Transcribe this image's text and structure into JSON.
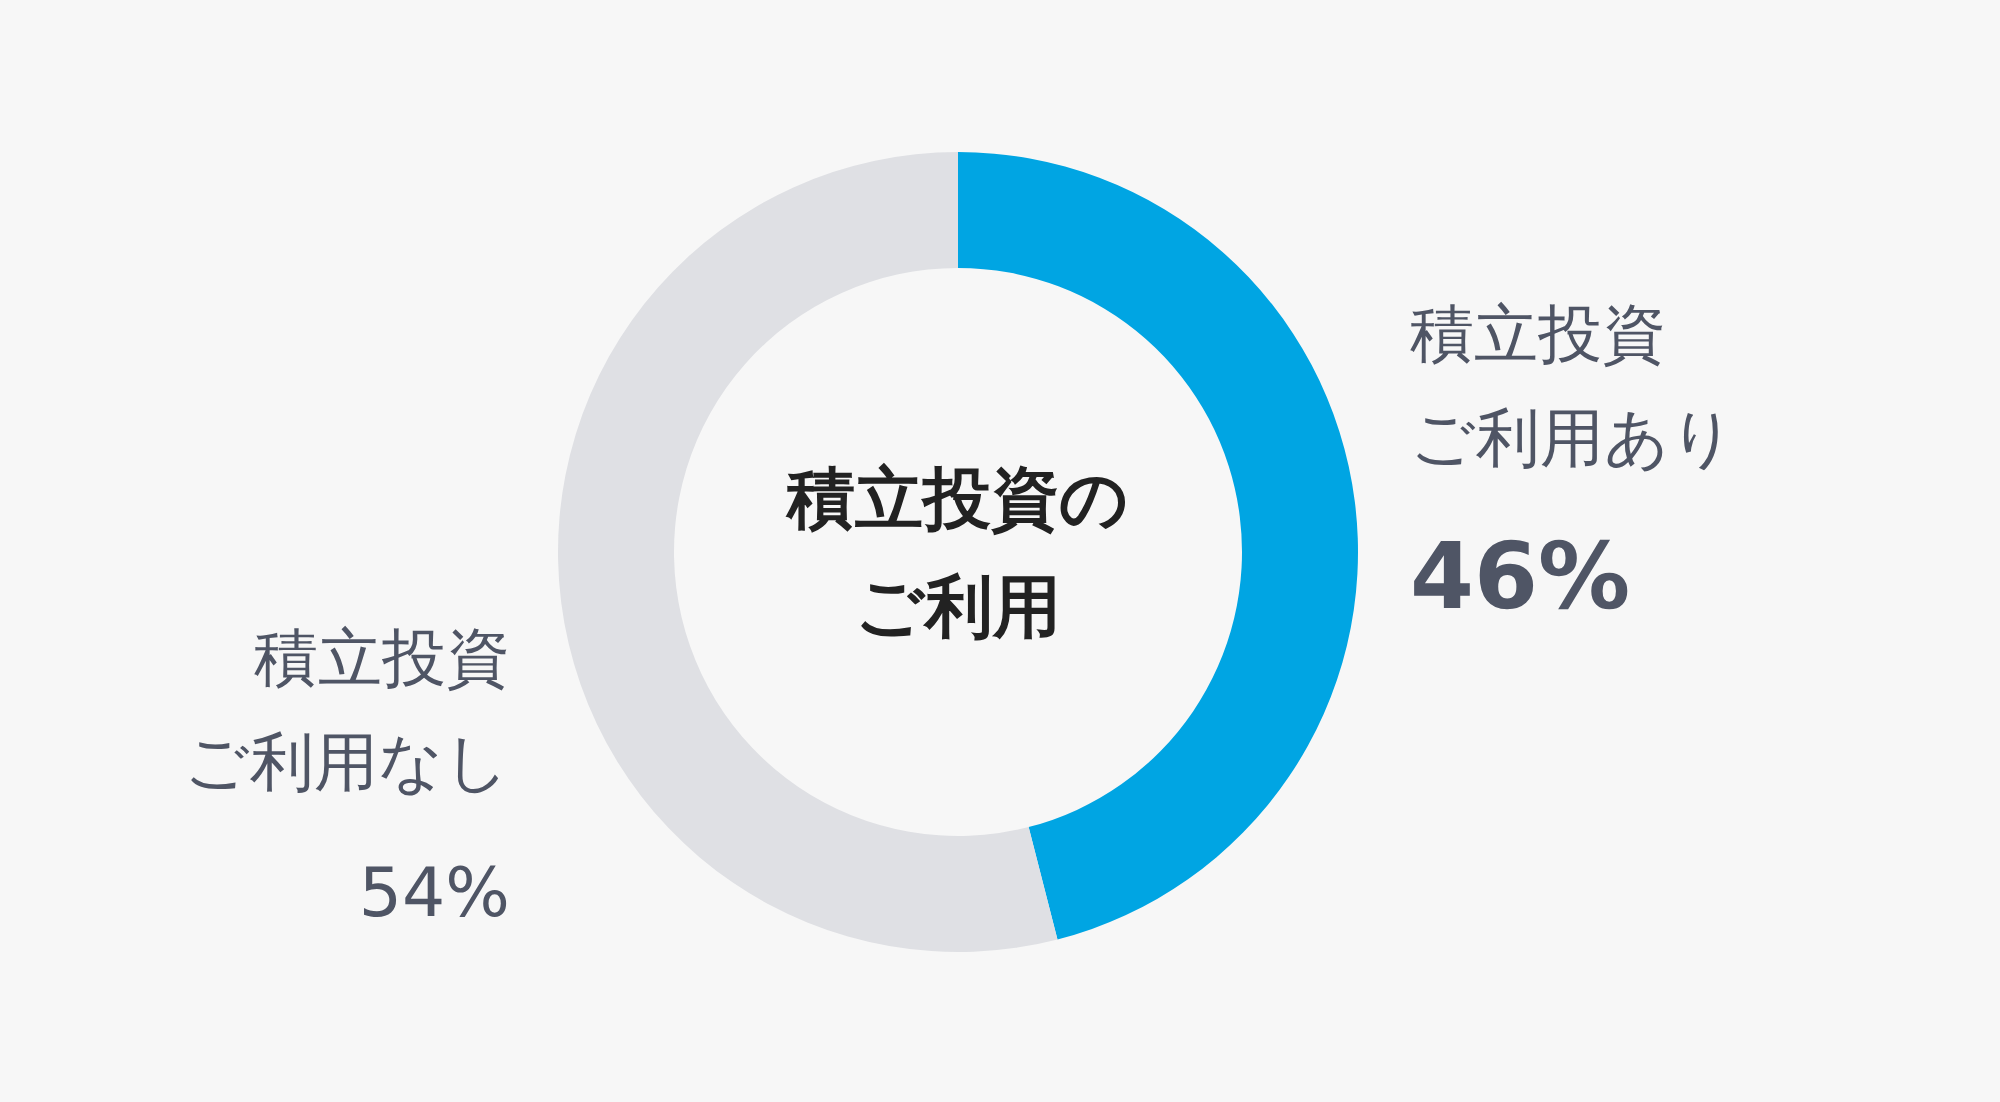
{
  "chart_data": {
    "type": "donut",
    "title": "積立投資のご利用",
    "categories": [
      "積立投資ご利用あり",
      "積立投資ご利用なし"
    ],
    "values": [
      46,
      54
    ],
    "colors": [
      "#00a5e3",
      "#dfe0e4"
    ],
    "value_labels": [
      "46%",
      "54%"
    ]
  }
}
